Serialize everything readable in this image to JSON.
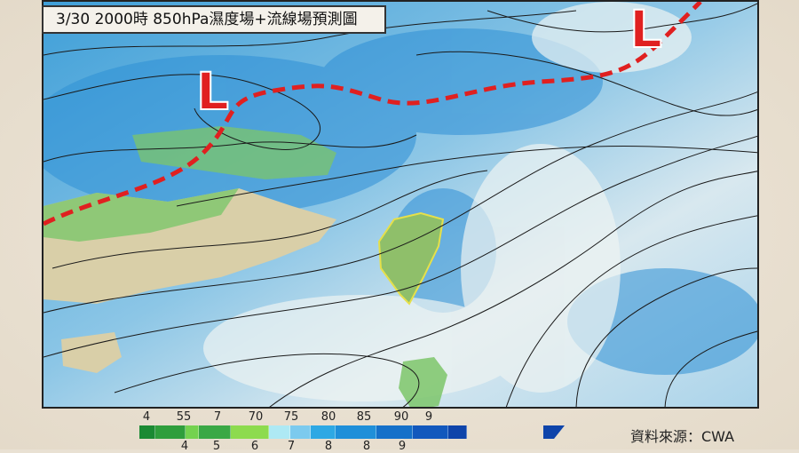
{
  "title": "3/30 2000時 850hPa濕度場+流線場預測圖",
  "low_pressure_markers": [
    "L",
    "L"
  ],
  "colors": {
    "front_line": "#e02020",
    "low_marker": "#e02020",
    "ocean": "#4aa8dc",
    "land": "#7cc56a"
  },
  "colorbar": {
    "top_labels": [
      "4",
      "55",
      "7",
      "70",
      "75",
      "80",
      "85",
      "90",
      "9"
    ],
    "bottom_labels": [
      "4",
      "5",
      "6",
      "7",
      "8",
      "8",
      "9"
    ],
    "colors": [
      "#1b8a33",
      "#2f9e3c",
      "#74d24f",
      "#3aa845",
      "#8ddb4e",
      "#aee9f4",
      "#7ccaee",
      "#2ea8e4",
      "#1f8fd9",
      "#1570c9",
      "#1258bd",
      "#0e44aa"
    ]
  },
  "source": "資料來源：CWA"
}
